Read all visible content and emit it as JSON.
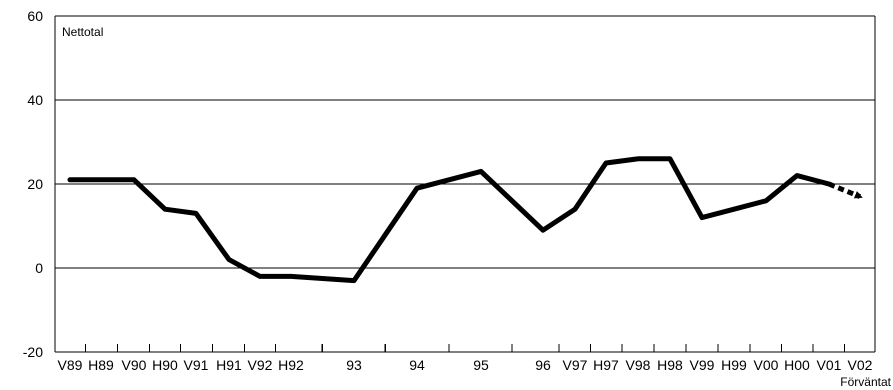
{
  "chart_data": {
    "type": "line",
    "annotation": "Nettotal",
    "x_tick_labels": [
      "V89",
      "H89",
      "V90",
      "H90",
      "V91",
      "H91",
      "V92",
      "H92",
      "93",
      "94",
      "95",
      "96",
      "V97",
      "H97",
      "V98",
      "H98",
      "V99",
      "H99",
      "V00",
      "H00",
      "V01",
      "V02"
    ],
    "forecast_label": "Förväntat",
    "ylim": [
      -20,
      60
    ],
    "y_ticks": [
      -20,
      0,
      20,
      40,
      60
    ],
    "grid": "horizontal",
    "series": [
      {
        "values": [
          {
            "x": "V89",
            "y": 21
          },
          {
            "x": "H89",
            "y": 21
          },
          {
            "x": "V90",
            "y": 21
          },
          {
            "x": "H90",
            "y": 14
          },
          {
            "x": "V91",
            "y": 13
          },
          {
            "x": "H91",
            "y": 2
          },
          {
            "x": "V92",
            "y": -2
          },
          {
            "x": "H92",
            "y": -2
          },
          {
            "x": "93",
            "y": -3
          },
          {
            "x": "94",
            "y": 19
          },
          {
            "x": "95",
            "y": 23
          },
          {
            "x": "96",
            "y": 9
          },
          {
            "x": "V97",
            "y": 14
          },
          {
            "x": "H97",
            "y": 25
          },
          {
            "x": "V98",
            "y": 26
          },
          {
            "x": "H98",
            "y": 26
          },
          {
            "x": "V99",
            "y": 12
          },
          {
            "x": "H99",
            "y": 14
          },
          {
            "x": "V00",
            "y": 16
          },
          {
            "x": "H00",
            "y": 22
          },
          {
            "x": "V01",
            "y": 20
          }
        ]
      },
      {
        "style": "dotted-arrow",
        "values": [
          {
            "x": "V01",
            "y": 20
          },
          {
            "x": "V02",
            "y": 17
          }
        ]
      }
    ]
  }
}
